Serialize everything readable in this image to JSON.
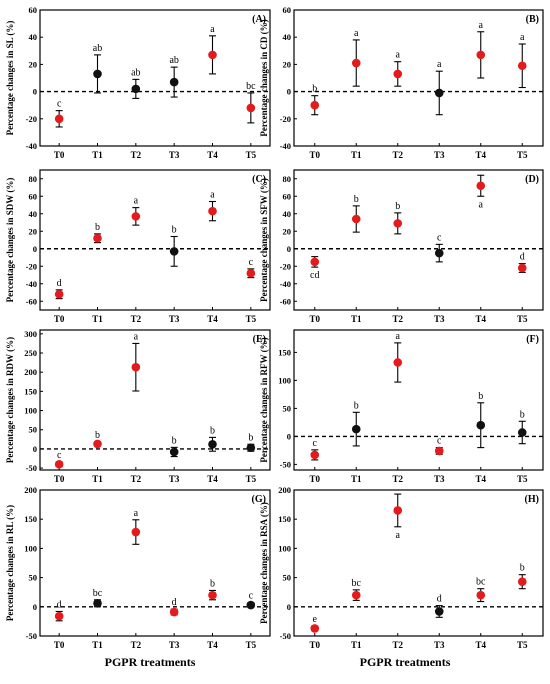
{
  "figure": {
    "xlabel_left": "PGPR treatments",
    "xlabel_right": "PGPR treatments"
  },
  "colors": {
    "significant": "#e41a1c",
    "nonsignificant": "#111111"
  },
  "chart_data": [
    {
      "type": "scatter",
      "panel": "(A)",
      "ylabel": "Percentage changes in SL (%)",
      "ylim": [
        -40,
        60
      ],
      "yticks": [
        -40,
        -20,
        0,
        20,
        40,
        60
      ],
      "categories": [
        "T0",
        "T1",
        "T2",
        "T3",
        "T4",
        "T5"
      ],
      "values": [
        -20,
        13,
        2,
        7,
        27,
        -12
      ],
      "errors": [
        6,
        14,
        7,
        11,
        14,
        11
      ],
      "letters": [
        "c",
        "ab",
        "ab",
        "ab",
        "a",
        "bc"
      ],
      "letter_positions": [
        "above",
        "above",
        "above",
        "above",
        "above",
        "above"
      ],
      "colors": [
        "red",
        "black",
        "black",
        "black",
        "red",
        "red"
      ]
    },
    {
      "type": "scatter",
      "panel": "(B)",
      "ylabel": "Percentage changes in CD (%)",
      "ylim": [
        -40,
        60
      ],
      "yticks": [
        -40,
        -20,
        0,
        20,
        40,
        60
      ],
      "categories": [
        "T0",
        "T1",
        "T2",
        "T3",
        "T4",
        "T5"
      ],
      "values": [
        -10,
        21,
        13,
        -1,
        27,
        19
      ],
      "errors": [
        7,
        17,
        9,
        16,
        17,
        16
      ],
      "letters": [
        "b",
        "a",
        "a",
        "a",
        "a",
        "a"
      ],
      "letter_positions": [
        "above",
        "above",
        "above",
        "above",
        "above",
        "above"
      ],
      "colors": [
        "red",
        "red",
        "red",
        "black",
        "red",
        "red"
      ]
    },
    {
      "type": "scatter",
      "panel": "(C)",
      "ylabel": "Percentage changes in SDW (%)",
      "ylim": [
        -70,
        90
      ],
      "yticks": [
        -60,
        -40,
        -20,
        0,
        20,
        40,
        60,
        80
      ],
      "categories": [
        "T0",
        "T1",
        "T2",
        "T3",
        "T4",
        "T5"
      ],
      "values": [
        -52,
        12,
        37,
        -3,
        43,
        -28
      ],
      "errors": [
        5,
        5,
        10,
        17,
        11,
        5
      ],
      "letters": [
        "d",
        "b",
        "a",
        "b",
        "a",
        "c"
      ],
      "letter_positions": [
        "above",
        "above",
        "above",
        "above",
        "above",
        "above"
      ],
      "colors": [
        "red",
        "red",
        "red",
        "black",
        "red",
        "red"
      ]
    },
    {
      "type": "scatter",
      "panel": "(D)",
      "ylabel": "Percentage changes in SFW (%)",
      "ylim": [
        -70,
        90
      ],
      "yticks": [
        -60,
        -40,
        -20,
        0,
        20,
        40,
        60,
        80
      ],
      "categories": [
        "T0",
        "T1",
        "T2",
        "T3",
        "T4",
        "T5"
      ],
      "values": [
        -15,
        34,
        29,
        -5,
        72,
        -22
      ],
      "errors": [
        6,
        15,
        12,
        10,
        12,
        5
      ],
      "letters": [
        "cd",
        "b",
        "b",
        "c",
        "a",
        "d"
      ],
      "letter_positions": [
        "below",
        "above",
        "above",
        "above",
        "below",
        "above"
      ],
      "colors": [
        "red",
        "red",
        "red",
        "black",
        "red",
        "red"
      ]
    },
    {
      "type": "scatter",
      "panel": "(E)",
      "ylabel": "Percentage changes in RDW (%)",
      "ylim": [
        -55,
        310
      ],
      "yticks": [
        -50,
        0,
        50,
        100,
        150,
        200,
        250,
        300
      ],
      "categories": [
        "T0",
        "T1",
        "T2",
        "T3",
        "T4",
        "T5"
      ],
      "values": [
        -40,
        13,
        213,
        -8,
        12,
        3
      ],
      "errors": [
        6,
        5,
        62,
        12,
        18,
        9
      ],
      "letters": [
        "c",
        "b",
        "a",
        "b",
        "b",
        "b"
      ],
      "letter_positions": [
        "above",
        "above",
        "above",
        "above",
        "above",
        "above"
      ],
      "colors": [
        "red",
        "red",
        "red",
        "black",
        "black",
        "black"
      ]
    },
    {
      "type": "scatter",
      "panel": "(F)",
      "ylabel": "Percentage changes in RFW (%)",
      "ylim": [
        -60,
        190
      ],
      "yticks": [
        -50,
        0,
        50,
        100,
        150
      ],
      "categories": [
        "T0",
        "T1",
        "T2",
        "T3",
        "T4",
        "T5"
      ],
      "values": [
        -33,
        13,
        132,
        -26,
        20,
        7
      ],
      "errors": [
        9,
        30,
        35,
        6,
        40,
        20
      ],
      "letters": [
        "c",
        "b",
        "a",
        "c",
        "b",
        "b"
      ],
      "letter_positions": [
        "above",
        "above",
        "above",
        "above",
        "above",
        "above"
      ],
      "colors": [
        "red",
        "black",
        "red",
        "red",
        "black",
        "black"
      ]
    },
    {
      "type": "scatter",
      "panel": "(G)",
      "ylabel": "Percentage changes in RL (%)",
      "ylim": [
        -50,
        200
      ],
      "yticks": [
        -50,
        0,
        50,
        100,
        150,
        200
      ],
      "categories": [
        "T0",
        "T1",
        "T2",
        "T3",
        "T4",
        "T5"
      ],
      "values": [
        -16,
        6,
        128,
        -9,
        20,
        3
      ],
      "errors": [
        8,
        6,
        21,
        5,
        8,
        4
      ],
      "letters": [
        "d",
        "bc",
        "a",
        "d",
        "b",
        "c"
      ],
      "letter_positions": [
        "above",
        "above",
        "above",
        "above",
        "above",
        "above"
      ],
      "colors": [
        "red",
        "black",
        "red",
        "red",
        "red",
        "black"
      ]
    },
    {
      "type": "scatter",
      "panel": "(H)",
      "ylabel": "Percentage changes in RSA (%)",
      "ylim": [
        -50,
        200
      ],
      "yticks": [
        -50,
        0,
        50,
        100,
        150,
        200
      ],
      "categories": [
        "T0",
        "T1",
        "T2",
        "T3",
        "T4",
        "T5"
      ],
      "values": [
        -37,
        20,
        165,
        -8,
        20,
        43
      ],
      "errors": [
        4,
        9,
        28,
        10,
        11,
        12
      ],
      "letters": [
        "e",
        "bc",
        "a",
        "d",
        "bc",
        "b"
      ],
      "letter_positions": [
        "above",
        "above",
        "below",
        "above",
        "above",
        "above"
      ],
      "colors": [
        "red",
        "red",
        "red",
        "black",
        "red",
        "red"
      ]
    }
  ]
}
